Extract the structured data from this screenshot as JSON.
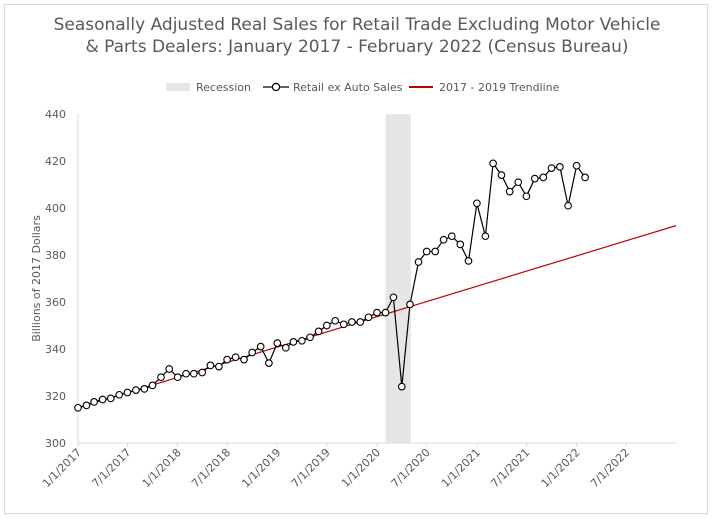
{
  "chart_data": {
    "type": "line",
    "title_line1": "Seasonally Adjusted Real Sales for Retail Trade Excluding Motor Vehicle",
    "title_line2": "& Parts Dealers: January 2017 - February 2022 (Census Bureau)",
    "ylabel": "Billions of 2017 Dollars",
    "xlabel": "",
    "ylim": [
      300,
      440
    ],
    "yticks": [
      300,
      320,
      340,
      360,
      380,
      400,
      420,
      440
    ],
    "xlim": [
      "2017-01-01",
      "2022-12-31"
    ],
    "xticks": [
      "1/1/2017",
      "7/1/2017",
      "1/1/2018",
      "7/1/2018",
      "1/1/2019",
      "7/1/2019",
      "1/1/2020",
      "7/1/2020",
      "1/1/2021",
      "7/1/2021",
      "1/1/2022",
      "7/1/2022"
    ],
    "legend": {
      "placement": "top-center",
      "entries": [
        "Recession",
        "Retail ex Auto Sales",
        "2017 - 2019 Trendline"
      ]
    },
    "grid": false,
    "colors": {
      "recession": "#e6e6e6",
      "sales": "#000000",
      "trend": "#c00000",
      "axis": "#d9d9d9",
      "text": "#595959"
    },
    "recession": {
      "start": "2020-02",
      "end": "2020-04"
    },
    "series": [
      {
        "name": "Retail ex Auto Sales",
        "x": [
          "2017-01",
          "2017-02",
          "2017-03",
          "2017-04",
          "2017-05",
          "2017-06",
          "2017-07",
          "2017-08",
          "2017-09",
          "2017-10",
          "2017-11",
          "2017-12",
          "2018-01",
          "2018-02",
          "2018-03",
          "2018-04",
          "2018-05",
          "2018-06",
          "2018-07",
          "2018-08",
          "2018-09",
          "2018-10",
          "2018-11",
          "2018-12",
          "2019-01",
          "2019-02",
          "2019-03",
          "2019-04",
          "2019-05",
          "2019-06",
          "2019-07",
          "2019-08",
          "2019-09",
          "2019-10",
          "2019-11",
          "2019-12",
          "2020-01",
          "2020-02",
          "2020-03",
          "2020-04",
          "2020-05",
          "2020-06",
          "2020-07",
          "2020-08",
          "2020-09",
          "2020-10",
          "2020-11",
          "2020-12",
          "2021-01",
          "2021-02",
          "2021-03",
          "2021-04",
          "2021-05",
          "2021-06",
          "2021-07",
          "2021-08",
          "2021-09",
          "2021-10",
          "2021-11",
          "2021-12",
          "2022-01",
          "2022-02"
        ],
        "values": [
          315.0,
          316.0,
          317.5,
          318.5,
          319.0,
          320.5,
          321.5,
          322.5,
          323.0,
          324.5,
          328.0,
          331.5,
          328.0,
          329.5,
          329.5,
          330.0,
          333.0,
          332.5,
          335.5,
          336.5,
          335.5,
          338.5,
          341.0,
          334.0,
          342.5,
          340.5,
          343.0,
          343.5,
          345.0,
          347.5,
          350.0,
          352.0,
          350.5,
          351.5,
          351.5,
          353.5,
          355.5,
          355.5,
          362.0,
          324.0,
          359.0,
          377.0,
          381.5,
          381.5,
          386.5,
          388.0,
          384.5,
          377.5,
          402.0,
          388.0,
          419.0,
          414.0,
          407.0,
          411.0,
          405.0,
          412.5,
          413.0,
          417.0,
          417.5,
          401.0,
          418.0,
          413.0
        ]
      },
      {
        "name": "2017 - 2019 Trendline",
        "x": [
          "2017-01-01",
          "2022-12-31"
        ],
        "values": [
          315.0,
          392.5
        ]
      }
    ]
  }
}
